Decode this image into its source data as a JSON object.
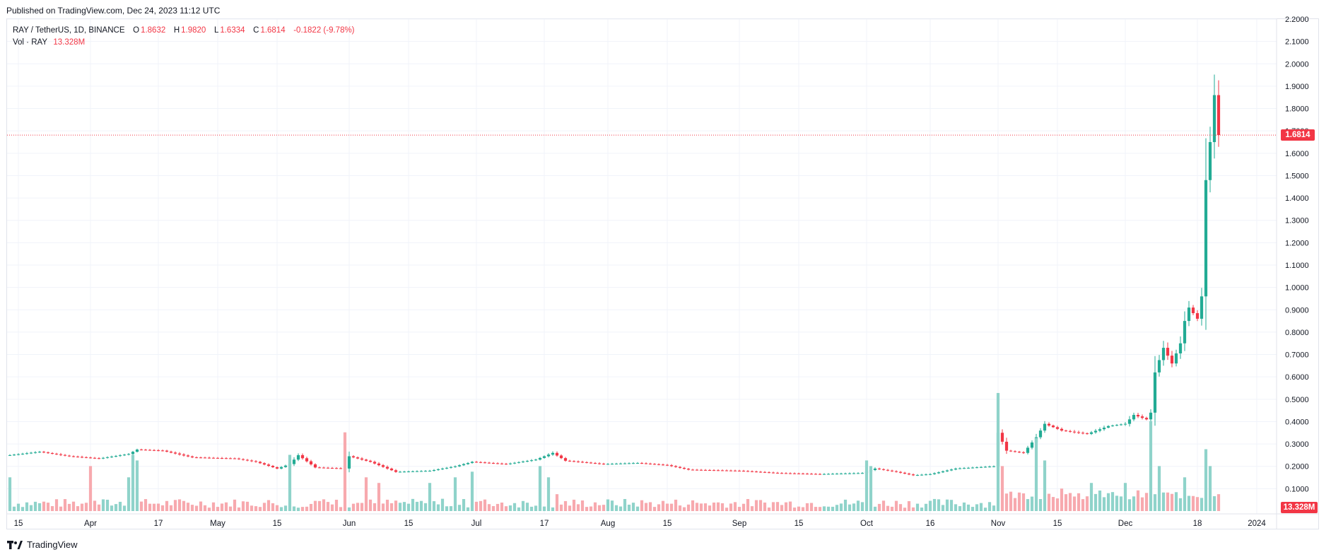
{
  "published": "Published on TradingView.com, Dec 24, 2023 11:12 UTC",
  "legend": {
    "symbol": "RAY / TetherUS, 1D, BINANCE",
    "o_label": "O",
    "o": "1.8632",
    "h_label": "H",
    "h": "1.9820",
    "l_label": "L",
    "l": "1.6334",
    "c_label": "C",
    "c": "1.6814",
    "change": "-0.1822 (-9.78%)",
    "vol_label": "Vol · RAY",
    "vol_value": "13.328M"
  },
  "footer": {
    "brand": "TradingView",
    "logo_icon": "tradingview-logo-icon"
  },
  "colors": {
    "up": "#22ab94",
    "down": "#f23645",
    "up_vol": "#8fd3ca",
    "down_vol": "#f7a9ae",
    "grid": "#f0f3fa",
    "axis_text": "#131722"
  },
  "chart_data": {
    "type": "candlestick",
    "symbol": "RAY / TetherUS",
    "interval": "1D",
    "exchange": "BINANCE",
    "grid": true,
    "price_axis": "right",
    "ylim": [
      0,
      2.2
    ],
    "y_ticks": [
      "0.1000",
      "0.2000",
      "0.3000",
      "0.4000",
      "0.5000",
      "0.6000",
      "0.7000",
      "0.8000",
      "0.9000",
      "1.0000",
      "1.1000",
      "1.2000",
      "1.3000",
      "1.4000",
      "1.5000",
      "1.6000",
      "1.7000",
      "1.8000",
      "1.9000",
      "2.0000",
      "2.1000",
      "2.2000"
    ],
    "y_tick_values": [
      0.1,
      0.2,
      0.3,
      0.4,
      0.5,
      0.6,
      0.7,
      0.8,
      0.9,
      1.0,
      1.1,
      1.2,
      1.3,
      1.4,
      1.5,
      1.6,
      1.7,
      1.8,
      1.9,
      2.0,
      2.1,
      2.2
    ],
    "x_range": [
      "2023-03-13",
      "2024-01-03"
    ],
    "x_ticks": [
      {
        "label": "15",
        "date": "2023-03-15"
      },
      {
        "label": "Apr",
        "date": "2023-04-01"
      },
      {
        "label": "17",
        "date": "2023-04-17"
      },
      {
        "label": "May",
        "date": "2023-05-01"
      },
      {
        "label": "15",
        "date": "2023-05-15"
      },
      {
        "label": "Jun",
        "date": "2023-06-01"
      },
      {
        "label": "15",
        "date": "2023-06-15"
      },
      {
        "label": "Jul",
        "date": "2023-07-01"
      },
      {
        "label": "17",
        "date": "2023-07-17"
      },
      {
        "label": "Aug",
        "date": "2023-08-01"
      },
      {
        "label": "15",
        "date": "2023-08-15"
      },
      {
        "label": "Sep",
        "date": "2023-09-01"
      },
      {
        "label": "15",
        "date": "2023-09-15"
      },
      {
        "label": "Oct",
        "date": "2023-10-01"
      },
      {
        "label": "16",
        "date": "2023-10-16"
      },
      {
        "label": "Nov",
        "date": "2023-11-01"
      },
      {
        "label": "15",
        "date": "2023-11-15"
      },
      {
        "label": "Dec",
        "date": "2023-12-01"
      },
      {
        "label": "18",
        "date": "2023-12-18"
      },
      {
        "label": "2024",
        "date": "2024-01-01"
      }
    ],
    "last_price": "1.6814",
    "last_volume": "13.328M",
    "price_anchors": [
      [
        "2023-03-13",
        0.25
      ],
      [
        "2023-03-20",
        0.265
      ],
      [
        "2023-03-27",
        0.245
      ],
      [
        "2023-04-03",
        0.235
      ],
      [
        "2023-04-10",
        0.255
      ],
      [
        "2023-04-12",
        0.275
      ],
      [
        "2023-04-18",
        0.27
      ],
      [
        "2023-04-25",
        0.24
      ],
      [
        "2023-05-05",
        0.235
      ],
      [
        "2023-05-10",
        0.22
      ],
      [
        "2023-05-15",
        0.19
      ],
      [
        "2023-05-18",
        0.21
      ],
      [
        "2023-05-20",
        0.25
      ],
      [
        "2023-05-24",
        0.195
      ],
      [
        "2023-05-31",
        0.19
      ],
      [
        "2023-06-01",
        0.245
      ],
      [
        "2023-06-06",
        0.22
      ],
      [
        "2023-06-12",
        0.175
      ],
      [
        "2023-06-20",
        0.18
      ],
      [
        "2023-06-26",
        0.2
      ],
      [
        "2023-06-30",
        0.22
      ],
      [
        "2023-07-08",
        0.21
      ],
      [
        "2023-07-15",
        0.23
      ],
      [
        "2023-07-19",
        0.26
      ],
      [
        "2023-07-22",
        0.225
      ],
      [
        "2023-07-31",
        0.21
      ],
      [
        "2023-08-08",
        0.215
      ],
      [
        "2023-08-15",
        0.205
      ],
      [
        "2023-08-20",
        0.185
      ],
      [
        "2023-09-01",
        0.18
      ],
      [
        "2023-09-10",
        0.17
      ],
      [
        "2023-09-20",
        0.165
      ],
      [
        "2023-09-30",
        0.17
      ],
      [
        "2023-10-03",
        0.19
      ],
      [
        "2023-10-08",
        0.175
      ],
      [
        "2023-10-12",
        0.16
      ],
      [
        "2023-10-16",
        0.165
      ],
      [
        "2023-10-22",
        0.19
      ],
      [
        "2023-10-31",
        0.2
      ],
      [
        "2023-11-01",
        0.35
      ],
      [
        "2023-11-03",
        0.27
      ],
      [
        "2023-11-07",
        0.26
      ],
      [
        "2023-11-10",
        0.33
      ],
      [
        "2023-11-12",
        0.39
      ],
      [
        "2023-11-16",
        0.36
      ],
      [
        "2023-11-22",
        0.345
      ],
      [
        "2023-11-27",
        0.38
      ],
      [
        "2023-12-01",
        0.39
      ],
      [
        "2023-12-03",
        0.43
      ],
      [
        "2023-12-06",
        0.41
      ],
      [
        "2023-12-07",
        0.44
      ],
      [
        "2023-12-08",
        0.62
      ],
      [
        "2023-12-10",
        0.73
      ],
      [
        "2023-12-12",
        0.66
      ],
      [
        "2023-12-14",
        0.75
      ],
      [
        "2023-12-15",
        0.85
      ],
      [
        "2023-12-16",
        0.91
      ],
      [
        "2023-12-18",
        0.86
      ],
      [
        "2023-12-19",
        0.96
      ],
      [
        "2023-12-20",
        1.48
      ],
      [
        "2023-12-21",
        1.65
      ],
      [
        "2023-12-22",
        1.86
      ],
      [
        "2023-12-23",
        1.6814
      ]
    ],
    "volume_range": [
      0,
      22
    ],
    "volume_spikes": [
      [
        "2023-03-13",
        6
      ],
      [
        "2023-04-01",
        8
      ],
      [
        "2023-04-10",
        6
      ],
      [
        "2023-04-11",
        10
      ],
      [
        "2023-04-12",
        9
      ],
      [
        "2023-05-18",
        10
      ],
      [
        "2023-05-31",
        14
      ],
      [
        "2023-06-05",
        6
      ],
      [
        "2023-06-08",
        5
      ],
      [
        "2023-06-20",
        5
      ],
      [
        "2023-06-26",
        6
      ],
      [
        "2023-06-30",
        7
      ],
      [
        "2023-07-16",
        8
      ],
      [
        "2023-07-18",
        6
      ],
      [
        "2023-07-20",
        3
      ],
      [
        "2023-10-01",
        9
      ],
      [
        "2023-10-02",
        8
      ],
      [
        "2023-11-01",
        21
      ],
      [
        "2023-11-02",
        8
      ],
      [
        "2023-11-10",
        13
      ],
      [
        "2023-11-12",
        9
      ],
      [
        "2023-11-16",
        4
      ],
      [
        "2023-11-23",
        5
      ],
      [
        "2023-12-01",
        5
      ],
      [
        "2023-12-07",
        16
      ],
      [
        "2023-12-09",
        8
      ],
      [
        "2023-12-15",
        6
      ],
      [
        "2023-12-20",
        11
      ],
      [
        "2023-12-21",
        8
      ],
      [
        "2023-12-23",
        3
      ]
    ]
  }
}
